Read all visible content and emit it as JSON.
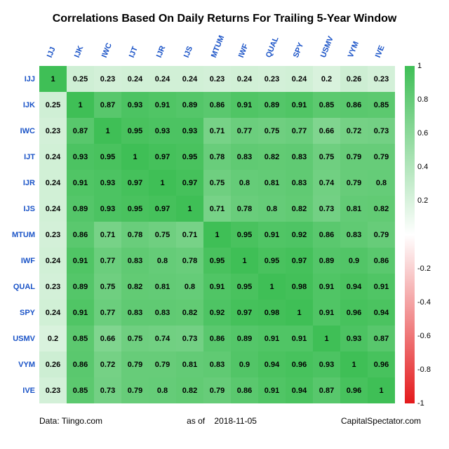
{
  "title": "Correlations Based On Daily Returns For Trailing 5-Year Window",
  "tickers": [
    "IJJ",
    "IJK",
    "IWC",
    "IJT",
    "IJR",
    "IJS",
    "MTUM",
    "IWF",
    "QUAL",
    "SPY",
    "USMV",
    "VYM",
    "IVE"
  ],
  "matrix": [
    [
      1.0,
      0.25,
      0.23,
      0.24,
      0.24,
      0.24,
      0.23,
      0.24,
      0.23,
      0.24,
      0.2,
      0.26,
      0.23
    ],
    [
      0.25,
      1.0,
      0.87,
      0.93,
      0.91,
      0.89,
      0.86,
      0.91,
      0.89,
      0.91,
      0.85,
      0.86,
      0.85
    ],
    [
      0.23,
      0.87,
      1.0,
      0.95,
      0.93,
      0.93,
      0.71,
      0.77,
      0.75,
      0.77,
      0.66,
      0.72,
      0.73
    ],
    [
      0.24,
      0.93,
      0.95,
      1.0,
      0.97,
      0.95,
      0.78,
      0.83,
      0.82,
      0.83,
      0.75,
      0.79,
      0.79
    ],
    [
      0.24,
      0.91,
      0.93,
      0.97,
      1.0,
      0.97,
      0.75,
      0.8,
      0.81,
      0.83,
      0.74,
      0.79,
      0.8
    ],
    [
      0.24,
      0.89,
      0.93,
      0.95,
      0.97,
      1.0,
      0.71,
      0.78,
      0.8,
      0.82,
      0.73,
      0.81,
      0.82
    ],
    [
      0.23,
      0.86,
      0.71,
      0.78,
      0.75,
      0.71,
      1.0,
      0.95,
      0.91,
      0.92,
      0.86,
      0.83,
      0.79
    ],
    [
      0.24,
      0.91,
      0.77,
      0.83,
      0.8,
      0.78,
      0.95,
      1.0,
      0.95,
      0.97,
      0.89,
      0.9,
      0.86
    ],
    [
      0.23,
      0.89,
      0.75,
      0.82,
      0.81,
      0.8,
      0.91,
      0.95,
      1.0,
      0.98,
      0.91,
      0.94,
      0.91
    ],
    [
      0.24,
      0.91,
      0.77,
      0.83,
      0.83,
      0.82,
      0.92,
      0.97,
      0.98,
      1.0,
      0.91,
      0.96,
      0.94
    ],
    [
      0.2,
      0.85,
      0.66,
      0.75,
      0.74,
      0.73,
      0.86,
      0.89,
      0.91,
      0.91,
      1.0,
      0.93,
      0.87
    ],
    [
      0.26,
      0.86,
      0.72,
      0.79,
      0.79,
      0.81,
      0.83,
      0.9,
      0.94,
      0.96,
      0.93,
      1.0,
      0.96
    ],
    [
      0.23,
      0.85,
      0.73,
      0.79,
      0.8,
      0.82,
      0.79,
      0.86,
      0.91,
      0.94,
      0.87,
      0.96,
      1.0
    ]
  ],
  "colorbar": {
    "min": -1,
    "max": 1,
    "ticks": [
      -1,
      -0.8,
      -0.6,
      -0.4,
      -0.2,
      0.2,
      0.4,
      0.6,
      0.8,
      1
    ],
    "pos_color": "#3fbf56",
    "zero_color": "#ffffff",
    "neg_color": "#e41a1c"
  },
  "footer": {
    "left": "Data: Tiingo.com",
    "mid_label": "as of",
    "date": "2018-11-05",
    "right": "CapitalSpectator.com"
  },
  "style": {
    "title_fontsize": 16,
    "label_color": "#1a53c7",
    "cell_fontsize": 11,
    "background": "#ffffff"
  }
}
